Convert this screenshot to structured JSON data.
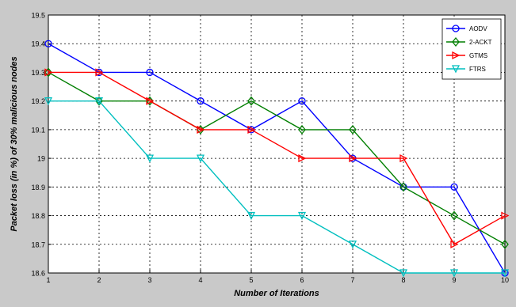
{
  "chart_data": {
    "type": "line",
    "title": "",
    "xlabel": "Number of Iterations",
    "ylabel": "Packet loss (in %) of 30% malicious nodes",
    "x": [
      1,
      2,
      3,
      4,
      5,
      6,
      7,
      8,
      9,
      10
    ],
    "xlim": [
      1,
      10
    ],
    "ylim": [
      18.6,
      19.5
    ],
    "x_ticks": [
      "1",
      "2",
      "3",
      "4",
      "5",
      "6",
      "7",
      "8",
      "9",
      "10"
    ],
    "y_ticks": [
      {
        "value": 18.6,
        "label": "18.6"
      },
      {
        "value": 18.7,
        "label": "18.7"
      },
      {
        "value": 18.8,
        "label": "18.8"
      },
      {
        "value": 18.9,
        "label": "18.9"
      },
      {
        "value": 19.0,
        "label": "19"
      },
      {
        "value": 19.1,
        "label": "19.1"
      },
      {
        "value": 19.2,
        "label": "19.2"
      },
      {
        "value": 19.3,
        "label": "19.3"
      },
      {
        "value": 19.4,
        "label": "19.4"
      },
      {
        "value": 19.5,
        "label": "19.5"
      }
    ],
    "grid": true,
    "legend_position": "top-right",
    "series": [
      {
        "name": "AODV",
        "color": "#0000ff",
        "marker": "circle",
        "values": [
          19.4,
          19.3,
          19.3,
          19.2,
          19.1,
          19.2,
          19.0,
          18.9,
          18.9,
          18.6
        ]
      },
      {
        "name": "2-ACKT",
        "color": "#007f00",
        "marker": "diamond",
        "values": [
          19.3,
          19.2,
          19.2,
          19.1,
          19.2,
          19.1,
          19.1,
          18.9,
          18.8,
          18.7
        ]
      },
      {
        "name": "GTMS",
        "color": "#ff0000",
        "marker": "triangle-right",
        "values": [
          19.3,
          19.3,
          19.2,
          19.1,
          19.1,
          19.0,
          19.0,
          19.0,
          18.7,
          18.8
        ]
      },
      {
        "name": "FTRS",
        "color": "#00bfbf",
        "marker": "triangle-down",
        "values": [
          19.2,
          19.2,
          19.0,
          19.0,
          18.8,
          18.8,
          18.7,
          18.6,
          18.6,
          18.6
        ]
      }
    ]
  }
}
